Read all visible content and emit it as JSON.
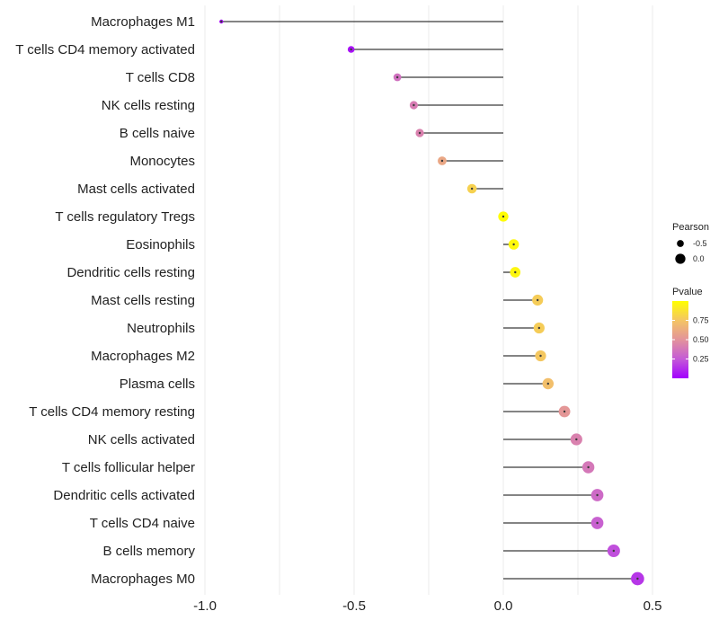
{
  "chart_data": {
    "type": "lollipop",
    "categories": [
      "Macrophages M1",
      "T cells CD4 memory activated",
      "T cells CD8",
      "NK cells resting",
      "B cells naive",
      "Monocytes",
      "Mast cells activated",
      "T cells regulatory  Tregs ",
      "Eosinophils",
      "Dendritic cells resting",
      "Mast cells resting",
      "Neutrophils",
      "Macrophages M2",
      "Plasma cells",
      "T cells CD4 memory resting",
      "NK cells activated",
      "T cells follicular helper",
      "Dendritic cells activated",
      "T cells CD4 naive",
      "B cells memory",
      "Macrophages M0"
    ],
    "values": [
      -0.945,
      -0.51,
      -0.355,
      -0.3,
      -0.28,
      -0.205,
      -0.105,
      0.0,
      0.035,
      0.04,
      0.115,
      0.12,
      0.125,
      0.15,
      0.205,
      0.245,
      0.285,
      0.315,
      0.315,
      0.37,
      0.45
    ],
    "pvalues": [
      0.02,
      0.05,
      0.35,
      0.4,
      0.42,
      0.6,
      0.8,
      0.99,
      0.97,
      0.96,
      0.78,
      0.78,
      0.76,
      0.72,
      0.52,
      0.42,
      0.38,
      0.32,
      0.28,
      0.22,
      0.15
    ],
    "x_ticks": [
      -1.0,
      -0.5,
      0.0,
      0.5
    ],
    "x_tick_labels": [
      "-1.0",
      "-0.5",
      "0.0",
      "0.5"
    ],
    "xlim": [
      -1.0,
      0.5
    ],
    "legend_size": {
      "title": "Pearson",
      "labels": [
        "-0.5",
        "0.0"
      ],
      "values": [
        -0.5,
        0.0
      ]
    },
    "legend_color": {
      "title": "Pvalue",
      "labels": [
        "0.75",
        "0.50",
        "0.25"
      ],
      "values": [
        0.75,
        0.5,
        0.25
      ],
      "range": [
        0.0,
        1.0
      ],
      "low_color": "#a200ff",
      "high_color": "#ffff00"
    },
    "stem_color": "#3a3a3a",
    "grid_color": "#ebebeb"
  }
}
